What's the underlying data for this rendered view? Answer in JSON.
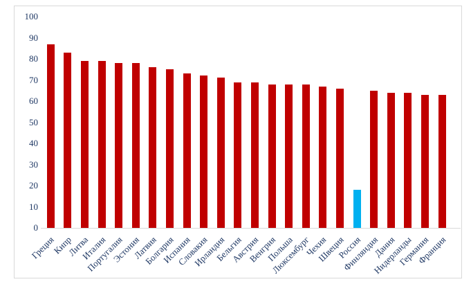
{
  "chart_data": {
    "type": "bar",
    "title": "",
    "xlabel": "",
    "ylabel": "",
    "categories": [
      "Греция",
      "Кипр",
      "Литва",
      "Италия",
      "Португалия",
      "Эстония",
      "Латвия",
      "Болгария",
      "Испания",
      "Словакия",
      "Ирландия",
      "Бельгия",
      "Австрия",
      "Венгрия",
      "Польша",
      "Люксембург",
      "Чехия",
      "Швеция",
      "Россия",
      "Финляндия",
      "Дания",
      "Нидерланды",
      "Германия",
      "Франция"
    ],
    "values": [
      87,
      83,
      79,
      79,
      78,
      78,
      76,
      75,
      73,
      72,
      71,
      69,
      69,
      68,
      68,
      68,
      67,
      66,
      18,
      65,
      64,
      64,
      63,
      63
    ],
    "highlighted_category": "Россия",
    "highlight_index": 18,
    "y_ticks": [
      "0",
      "10",
      "20",
      "30",
      "40",
      "50",
      "60",
      "70",
      "80",
      "90",
      "100"
    ],
    "ylim": [
      0,
      100
    ],
    "legend": "none",
    "grid": "off",
    "colors": {
      "bar": "#c00000",
      "highlight_bar": "#00b0f0",
      "axis_text": "#1f3864",
      "axis_line": "#d8d8d8",
      "frame_border": "#d8d8d8",
      "background": "#ffffff"
    }
  }
}
